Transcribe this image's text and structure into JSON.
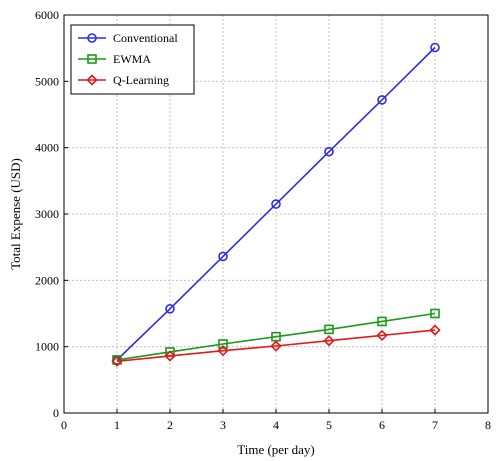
{
  "chart_data": {
    "type": "line",
    "xlabel": "Time (per day)",
    "ylabel": "Total Expense (USD)",
    "xlim": [
      0,
      8
    ],
    "ylim": [
      0,
      6000
    ],
    "xticks": [
      0,
      1,
      2,
      3,
      4,
      5,
      6,
      7,
      8
    ],
    "yticks": [
      0,
      1000,
      2000,
      3000,
      4000,
      5000,
      6000
    ],
    "grid": true,
    "legend_position": "top-left",
    "x": [
      1,
      2,
      3,
      4,
      5,
      6,
      7
    ],
    "series": [
      {
        "name": "Conventional",
        "color": "#2e2ee0",
        "marker": "circle",
        "values": [
          800,
          1570,
          2360,
          3150,
          3940,
          4720,
          5510
        ]
      },
      {
        "name": "EWMA",
        "color": "#1a9a1a",
        "marker": "square",
        "values": [
          800,
          920,
          1040,
          1150,
          1260,
          1380,
          1500
        ]
      },
      {
        "name": "Q-Learning",
        "color": "#e01a1a",
        "marker": "diamond",
        "values": [
          780,
          860,
          940,
          1010,
          1090,
          1170,
          1250
        ]
      }
    ]
  }
}
